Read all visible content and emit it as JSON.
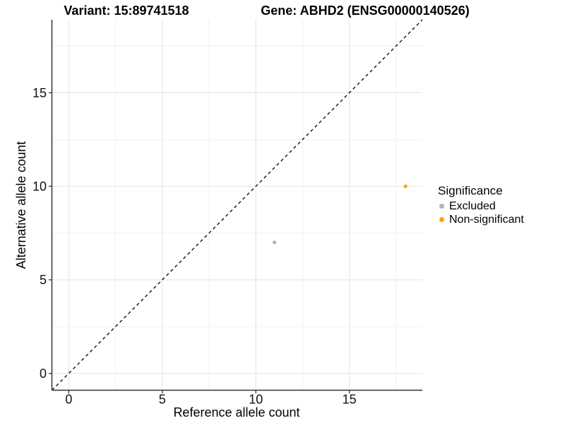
{
  "titles": {
    "variant": "Variant: 15:89741518",
    "gene": "Gene: ABHD2 (ENSG00000140526)"
  },
  "legend": {
    "title": "Significance",
    "position": "right",
    "items": [
      {
        "label": "Excluded",
        "color": "#b3b3b3"
      },
      {
        "label": "Non-significant",
        "color": "#ffa500"
      }
    ]
  },
  "chart_data": {
    "type": "scatter",
    "title": "Variant: 15:89741518   Gene: ABHD2 (ENSG00000140526)",
    "xlabel": "Reference allele count",
    "ylabel": "Alternative allele count",
    "xlim": [
      -0.9,
      18.9
    ],
    "ylim": [
      -0.9,
      18.9
    ],
    "x_major_ticks": [
      0,
      5,
      10,
      15
    ],
    "x_minor_ticks": [
      2.5,
      7.5,
      12.5,
      17.5
    ],
    "y_major_ticks": [
      0,
      5,
      10,
      15
    ],
    "y_minor_ticks": [
      2.5,
      7.5,
      12.5,
      17.5
    ],
    "grid": true,
    "reference_line": {
      "type": "identity",
      "style": "dashed",
      "color": "#000000"
    },
    "series": [
      {
        "name": "Excluded",
        "color": "#b3b3b3",
        "points": [
          {
            "x": 11,
            "y": 7
          }
        ]
      },
      {
        "name": "Non-significant",
        "color": "#ffa500",
        "points": [
          {
            "x": 18,
            "y": 10
          }
        ]
      }
    ]
  }
}
